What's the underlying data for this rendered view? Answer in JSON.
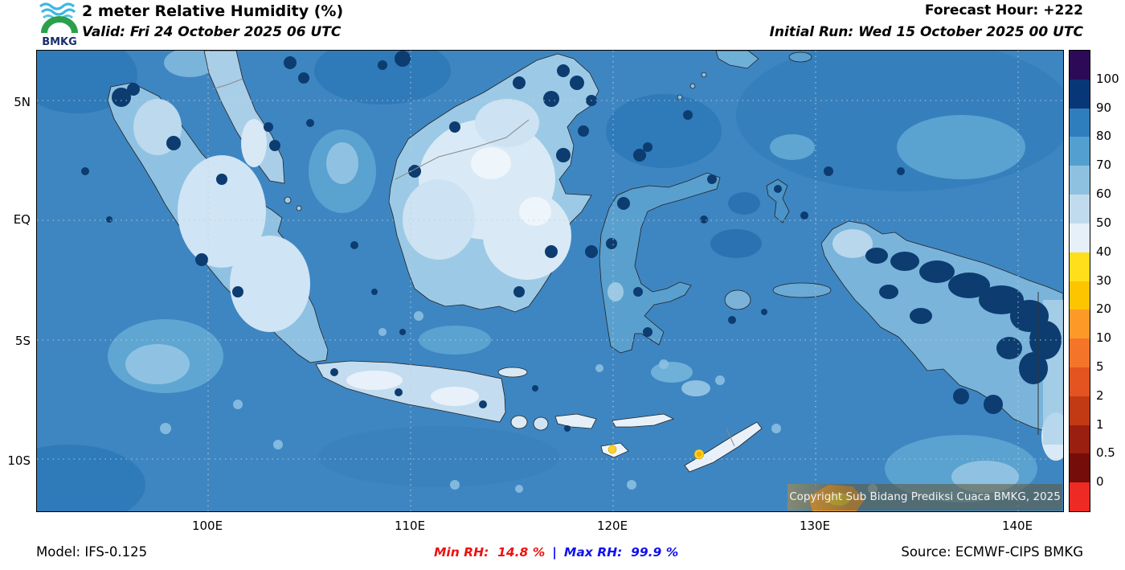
{
  "header": {
    "logo_text": "BMKG",
    "title": "2 meter Relative Humidity (%)",
    "valid": "Valid: Fri 24 October 2025 06 UTC",
    "forecast_hour": "Forecast Hour: +222",
    "initial_run": "Initial Run: Wed 15 October 2025 00 UTC"
  },
  "map": {
    "lat_labels": [
      "5N",
      "EQ",
      "5S",
      "10S"
    ],
    "lon_labels": [
      "100E",
      "110E",
      "120E",
      "130E",
      "140E"
    ],
    "copyright": "Copyright Sub Bidang Prediksi Cuaca BMKG, 2025"
  },
  "colorbar": {
    "labels": [
      "100",
      "90",
      "80",
      "70",
      "60",
      "50",
      "40",
      "30",
      "20",
      "10",
      "5",
      "2",
      "1",
      "0.5",
      "0"
    ],
    "colors": [
      "#2d0a57",
      "#083778",
      "#2e7ebd",
      "#539fd0",
      "#8ec1e0",
      "#c0dbed",
      "#e6f0f8",
      "#ffdf1b",
      "#fdc500",
      "#fd9a27",
      "#f4752a",
      "#e35420",
      "#c23a14",
      "#9a1f10",
      "#750d0a",
      "#ee2a25"
    ]
  },
  "footer": {
    "model": "Model: IFS-0.125",
    "min_rh": "Min RH:  14.8 %",
    "separator": "|",
    "max_rh": "Max RH:  99.9 %",
    "source": "Source: ECMWF-CIPS BMKG"
  }
}
